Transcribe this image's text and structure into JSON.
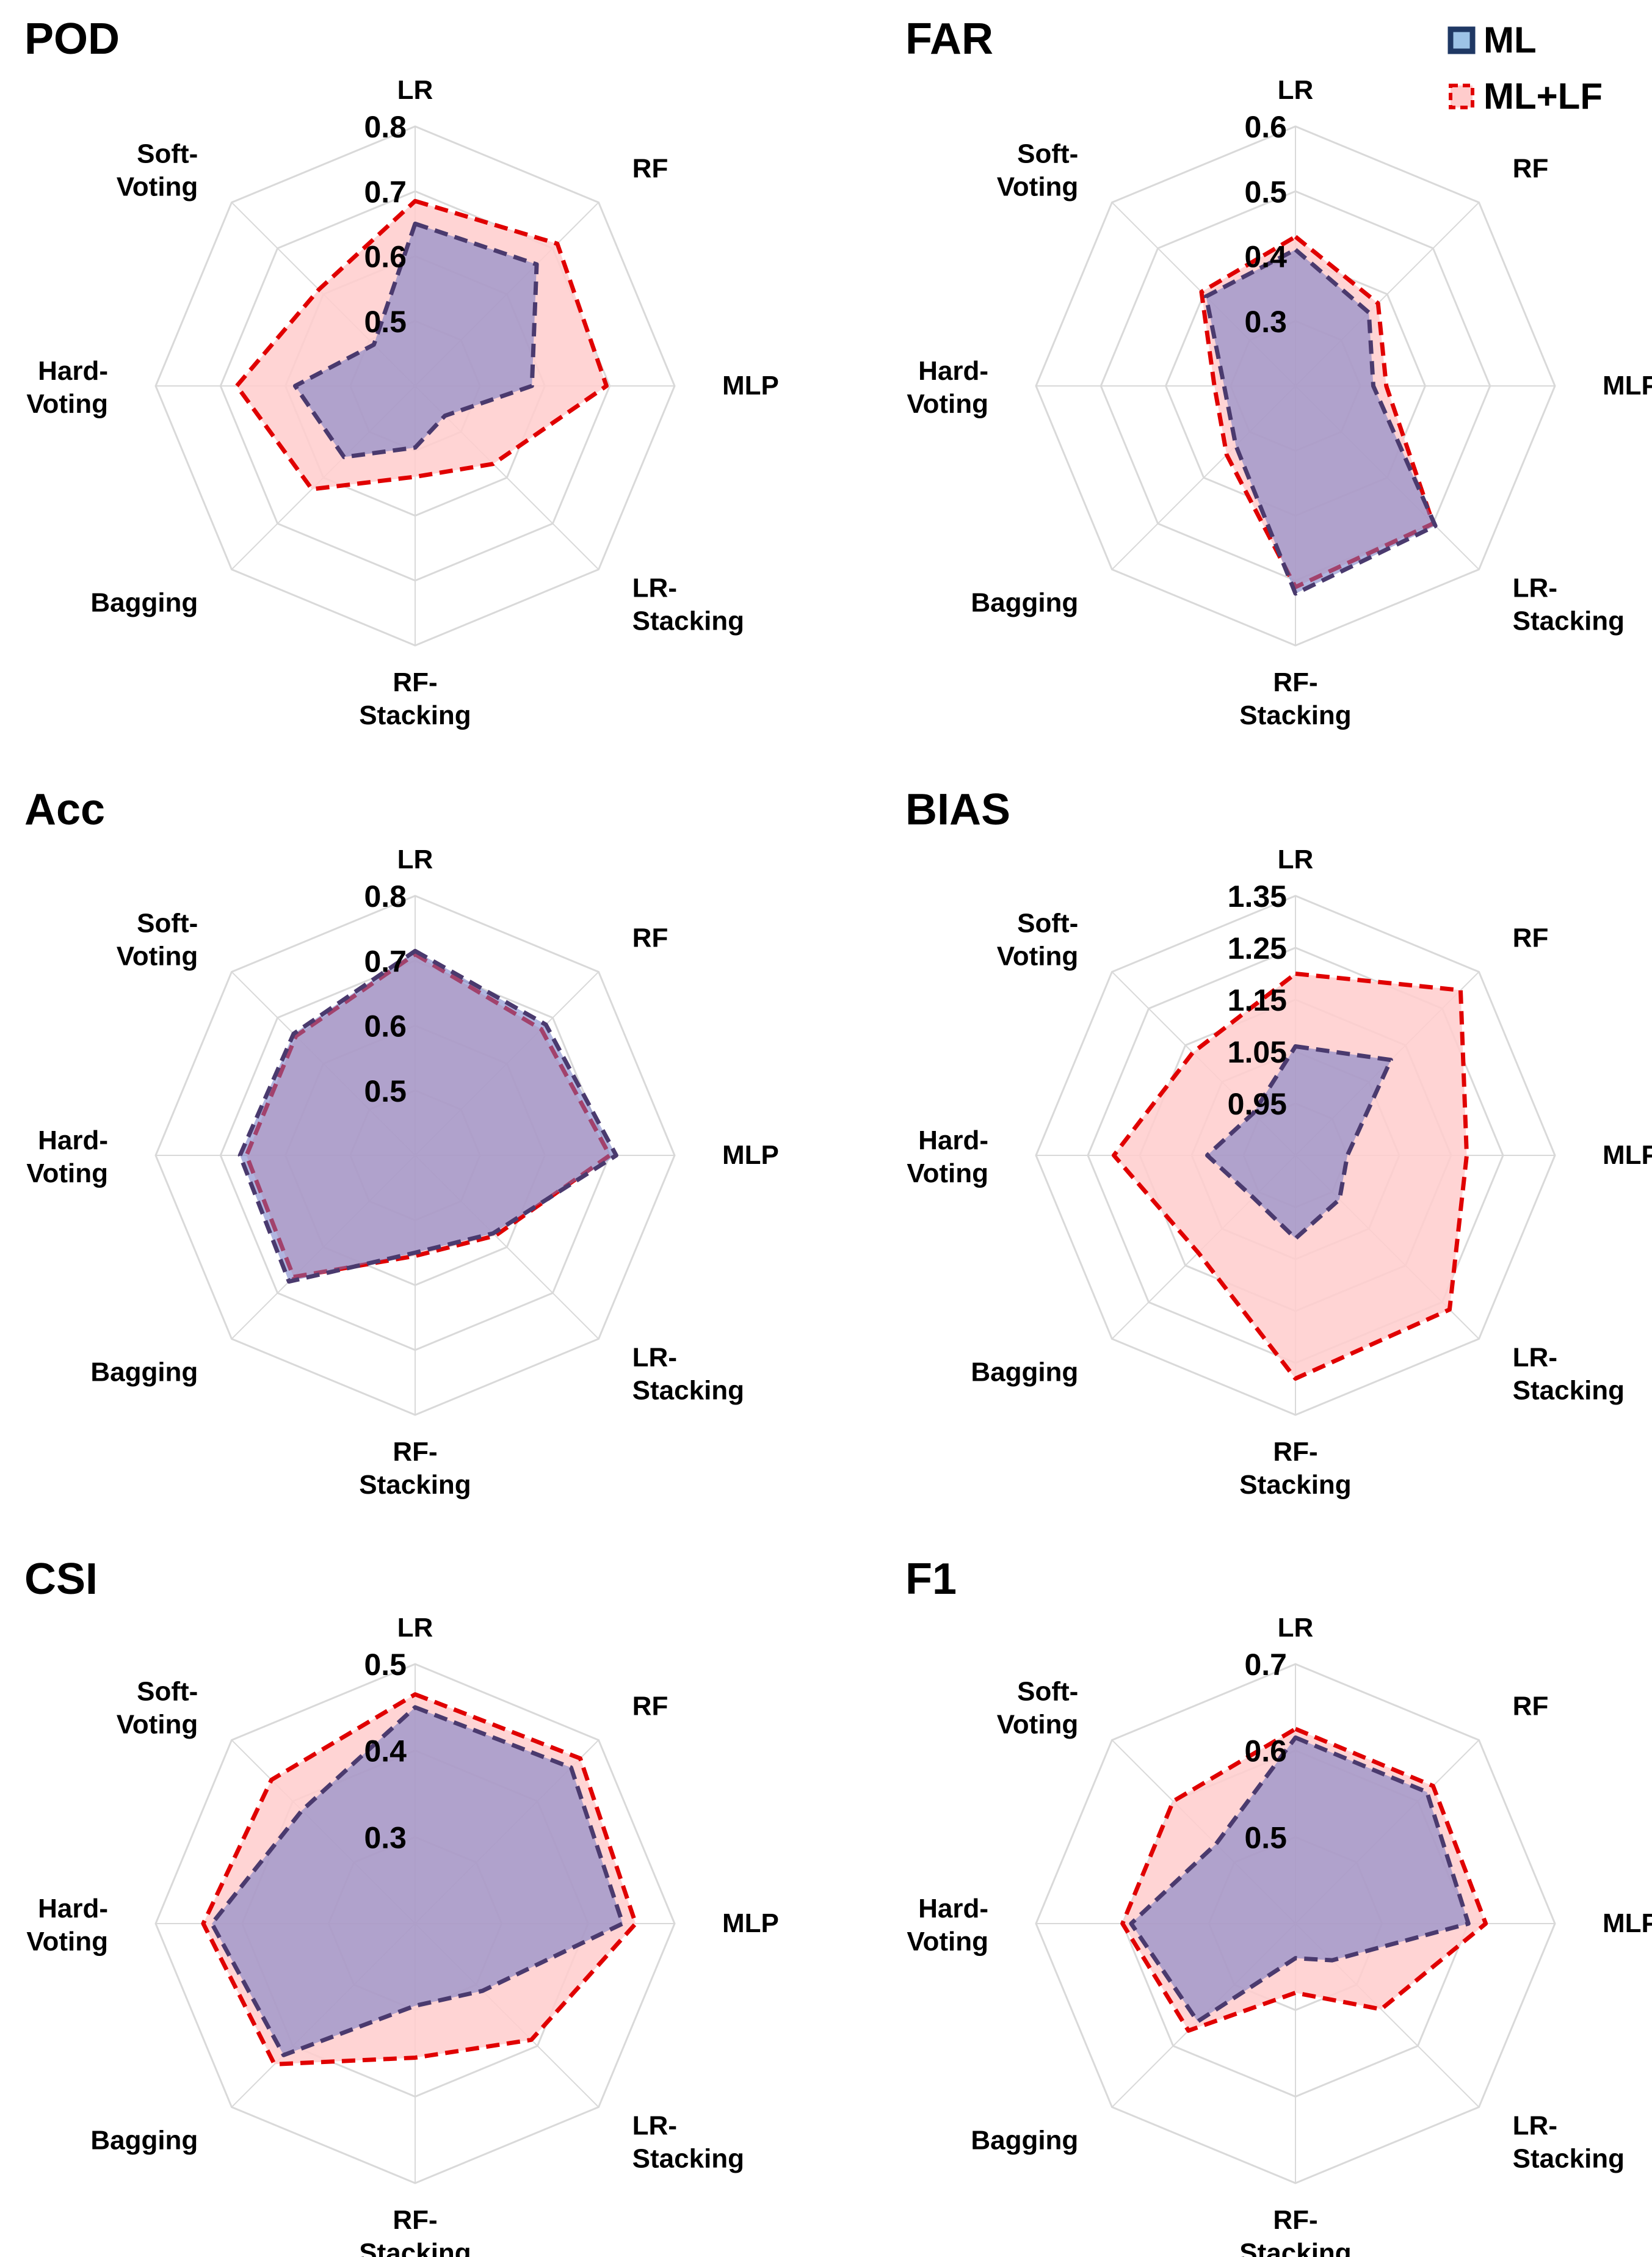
{
  "legend": {
    "entries": [
      {
        "label": "ML",
        "fill": "#9dc3e6",
        "stroke": "#1f3864"
      },
      {
        "label": "ML+LF",
        "fill": "#ffcccc",
        "stroke": "#e00000"
      }
    ],
    "placement": "top-right"
  },
  "colors": {
    "ml_fill": "#6f78c4",
    "ml_stroke": "#1f3864",
    "ml_stroke_display": "#4a3a6e",
    "mllf_fill": "#ffcccc",
    "mllf_stroke": "#e00000",
    "grid": "#d9d9d9"
  },
  "chart_data": [
    {
      "type": "radar",
      "title": "POD",
      "axes": [
        {
          "line1": "LR",
          "line2": ""
        },
        {
          "line1": "RF",
          "line2": ""
        },
        {
          "line1": "MLP",
          "line2": ""
        },
        {
          "line1": "LR-",
          "line2": "Stacking"
        },
        {
          "line1": "RF-",
          "line2": "Stacking"
        },
        {
          "line1": "Bagging",
          "line2": ""
        },
        {
          "line1": "Hard-",
          "line2": "Voting"
        },
        {
          "line1": "Soft-",
          "line2": "Voting"
        }
      ],
      "rmin": 0.4,
      "rmax": 0.8,
      "ticks": [
        0.5,
        0.6,
        0.7,
        0.8
      ],
      "series": [
        {
          "name": "ML+LF",
          "values": [
            0.685,
            0.71,
            0.695,
            0.57,
            0.54,
            0.625,
            0.675,
            0.61
          ]
        },
        {
          "name": "ML",
          "values": [
            0.65,
            0.665,
            0.58,
            0.465,
            0.495,
            0.555,
            0.585,
            0.49
          ]
        }
      ]
    },
    {
      "type": "radar",
      "title": "FAR",
      "axes": [
        {
          "line1": "LR",
          "line2": ""
        },
        {
          "line1": "RF",
          "line2": ""
        },
        {
          "line1": "MLP",
          "line2": ""
        },
        {
          "line1": "LR-",
          "line2": "Stacking"
        },
        {
          "line1": "RF-",
          "line2": "Stacking"
        },
        {
          "line1": "Bagging",
          "line2": ""
        },
        {
          "line1": "Hard-",
          "line2": "Voting"
        },
        {
          "line1": "Soft-",
          "line2": "Voting"
        }
      ],
      "rmin": 0.2,
      "rmax": 0.6,
      "ticks": [
        0.3,
        0.4,
        0.5,
        0.6
      ],
      "series": [
        {
          "name": "ML+LF",
          "values": [
            0.43,
            0.38,
            0.34,
            0.5,
            0.51,
            0.35,
            0.325,
            0.405
          ]
        },
        {
          "name": "ML",
          "values": [
            0.41,
            0.36,
            0.32,
            0.505,
            0.52,
            0.33,
            0.31,
            0.395
          ]
        }
      ]
    },
    {
      "type": "radar",
      "title": "Acc",
      "axes": [
        {
          "line1": "LR",
          "line2": ""
        },
        {
          "line1": "RF",
          "line2": ""
        },
        {
          "line1": "MLP",
          "line2": ""
        },
        {
          "line1": "LR-",
          "line2": "Stacking"
        },
        {
          "line1": "RF-",
          "line2": "Stacking"
        },
        {
          "line1": "Bagging",
          "line2": ""
        },
        {
          "line1": "Hard-",
          "line2": "Voting"
        },
        {
          "line1": "Soft-",
          "line2": "Voting"
        }
      ],
      "rmin": 0.4,
      "rmax": 0.8,
      "ticks": [
        0.5,
        0.6,
        0.7,
        0.8
      ],
      "series": [
        {
          "name": "ML+LF",
          "values": [
            0.71,
            0.675,
            0.7,
            0.575,
            0.555,
            0.665,
            0.66,
            0.66
          ]
        },
        {
          "name": "ML",
          "values": [
            0.715,
            0.685,
            0.71,
            0.57,
            0.55,
            0.675,
            0.67,
            0.665
          ]
        }
      ]
    },
    {
      "type": "radar",
      "title": "BIAS",
      "axes": [
        {
          "line1": "LR",
          "line2": ""
        },
        {
          "line1": "RF",
          "line2": ""
        },
        {
          "line1": "MLP",
          "line2": ""
        },
        {
          "line1": "LR-",
          "line2": "Stacking"
        },
        {
          "line1": "RF-",
          "line2": "Stacking"
        },
        {
          "line1": "Bagging",
          "line2": ""
        },
        {
          "line1": "Hard-",
          "line2": "Voting"
        },
        {
          "line1": "Soft-",
          "line2": "Voting"
        }
      ],
      "rmin": 0.85,
      "rmax": 1.35,
      "ticks": [
        0.95,
        1.05,
        1.15,
        1.25,
        1.35
      ],
      "series": [
        {
          "name": "ML+LF",
          "values": [
            1.2,
            1.3,
            1.18,
            1.27,
            1.28,
            1.115,
            1.2,
            1.13
          ]
        },
        {
          "name": "ML",
          "values": [
            1.06,
            1.11,
            0.95,
            0.97,
            1.01,
            0.965,
            1.02,
            0.965
          ]
        }
      ]
    },
    {
      "type": "radar",
      "title": "CSI",
      "axes": [
        {
          "line1": "LR",
          "line2": ""
        },
        {
          "line1": "RF",
          "line2": ""
        },
        {
          "line1": "MLP",
          "line2": ""
        },
        {
          "line1": "LR-",
          "line2": "Stacking"
        },
        {
          "line1": "RF-",
          "line2": "Stacking"
        },
        {
          "line1": "Bagging",
          "line2": ""
        },
        {
          "line1": "Hard-",
          "line2": "Voting"
        },
        {
          "line1": "Soft-",
          "line2": "Voting"
        }
      ],
      "rmin": 0.2,
      "rmax": 0.5,
      "ticks": [
        0.3,
        0.4,
        0.5
      ],
      "series": [
        {
          "name": "ML+LF",
          "values": [
            0.465,
            0.47,
            0.455,
            0.39,
            0.355,
            0.43,
            0.445,
            0.435
          ]
        },
        {
          "name": "ML",
          "values": [
            0.45,
            0.455,
            0.44,
            0.31,
            0.295,
            0.415,
            0.435,
            0.385
          ]
        }
      ]
    },
    {
      "type": "radar",
      "title": "F1",
      "axes": [
        {
          "line1": "LR",
          "line2": ""
        },
        {
          "line1": "RF",
          "line2": ""
        },
        {
          "line1": "MLP",
          "line2": ""
        },
        {
          "line1": "LR-",
          "line2": "Stacking"
        },
        {
          "line1": "RF-",
          "line2": "Stacking"
        },
        {
          "line1": "Bagging",
          "line2": ""
        },
        {
          "line1": "Hard-",
          "line2": "Voting"
        },
        {
          "line1": "Soft-",
          "line2": "Voting"
        }
      ],
      "rmin": 0.4,
      "rmax": 0.7,
      "ticks": [
        0.5,
        0.6,
        0.7
      ],
      "series": [
        {
          "name": "ML+LF",
          "values": [
            0.625,
            0.625,
            0.62,
            0.54,
            0.48,
            0.575,
            0.6,
            0.6
          ]
        },
        {
          "name": "ML",
          "values": [
            0.615,
            0.615,
            0.6,
            0.46,
            0.44,
            0.56,
            0.59,
            0.53
          ]
        }
      ]
    }
  ]
}
